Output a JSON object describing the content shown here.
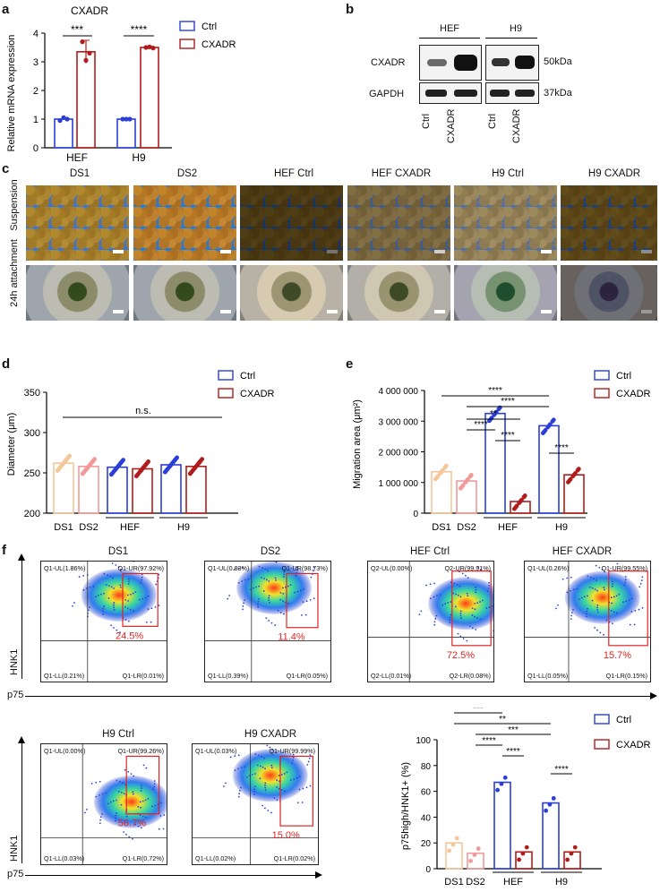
{
  "panel_labels": {
    "a": "a",
    "b": "b",
    "c": "c",
    "d": "d",
    "e": "e",
    "f": "f"
  },
  "panel_a": {
    "chart_data": {
      "type": "bar",
      "title": "CXADR",
      "ylabel": "Relative mRNA expression",
      "categories": [
        "HEF",
        "H9"
      ],
      "ylim": [
        0,
        4
      ],
      "yticks": [
        "0",
        "1",
        "2",
        "3",
        "4"
      ],
      "series": [
        {
          "name": "Ctrl",
          "color": "#2b3fd6",
          "values": [
            1.0,
            1.0
          ],
          "points": [
            [
              0.95,
              1.05,
              1.0
            ],
            [
              1.0,
              1.0,
              1.0
            ]
          ]
        },
        {
          "name": "CXADR",
          "color": "#b01c1c",
          "values": [
            3.35,
            3.5
          ],
          "points": [
            [
              3.7,
              3.05,
              3.3
            ],
            [
              3.5,
              3.52,
              3.48
            ]
          ],
          "err": [
            0.4,
            0.04
          ]
        }
      ],
      "significance": [
        "***",
        "****"
      ]
    }
  },
  "panel_b": {
    "groups": [
      "HEF",
      "H9"
    ],
    "rows": [
      "CXADR",
      "GAPDH"
    ],
    "sizes": [
      "50kDa",
      "37kDa"
    ],
    "lanes": [
      "Ctrl",
      "CXADR",
      "Ctrl",
      "CXADR"
    ]
  },
  "panel_c": {
    "columns": [
      "DS1",
      "DS2",
      "HEF Ctrl",
      "HEF CXADR",
      "H9 Ctrl",
      "H9 CXADR"
    ],
    "rows": [
      "Suspension",
      "24h attachment"
    ]
  },
  "panel_d": {
    "chart_data": {
      "type": "bar",
      "ylabel": "Diameter (μm)",
      "categories": [
        "DS1",
        "DS2",
        "HEF Ctrl",
        "HEF CXADR",
        "H9 Ctrl",
        "H9 CXADR"
      ],
      "group_labels": [
        "DS1",
        "DS2",
        "HEF",
        "H9"
      ],
      "ylim": [
        200,
        350
      ],
      "yticks": [
        "200",
        "250",
        "300",
        "350"
      ],
      "values": [
        262,
        258,
        257,
        255,
        260,
        258
      ],
      "colors": [
        "#f3c79a",
        "#f29a9a",
        "#2b3fd6",
        "#b01c1c",
        "#2b3fd6",
        "#b01c1c"
      ],
      "annotation": "n.s.",
      "legend": [
        "Ctrl",
        "CXADR"
      ]
    }
  },
  "panel_e": {
    "chart_data": {
      "type": "bar",
      "ylabel": "Migration area (μm²)",
      "categories": [
        "DS1",
        "DS2",
        "HEF Ctrl",
        "HEF CXADR",
        "H9 Ctrl",
        "H9 CXADR"
      ],
      "group_labels": [
        "DS1",
        "DS2",
        "HEF",
        "H9"
      ],
      "ylim": [
        0,
        4000000
      ],
      "yticks": [
        "0",
        "1 000 000",
        "2 000 000",
        "3 000 000",
        "4 000 000"
      ],
      "values": [
        1350000,
        1050000,
        3250000,
        380000,
        2850000,
        1250000
      ],
      "colors": [
        "#f3c79a",
        "#f29a9a",
        "#2b3fd6",
        "#b01c1c",
        "#2b3fd6",
        "#b01c1c"
      ],
      "significance": [
        "****",
        "****",
        "**",
        "****",
        "****",
        "****"
      ],
      "legend": [
        "Ctrl",
        "CXADR"
      ]
    }
  },
  "panel_f": {
    "plots": [
      {
        "title": "DS1",
        "ul": "Q1-UL(1.86%)",
        "ur": "Q1-UR(97.92%)",
        "ll": "Q1-LL(0.21%)",
        "lr": "Q1-LR(0.01%)",
        "gate": "24.5%"
      },
      {
        "title": "DS2",
        "ul": "Q1-UL(0.83%)",
        "ur": "Q1-UR(98.73%)",
        "ll": "Q1-LL(0.39%)",
        "lr": "Q1-LR(0.05%)",
        "gate": "11.4%"
      },
      {
        "title": "HEF Ctrl",
        "ul": "Q2-UL(0.00%)",
        "ur": "Q2-UR(99.91%)",
        "ll": "Q2-LL(0.01%)",
        "lr": "Q2-LR(0.08%)",
        "gate": "72.5%"
      },
      {
        "title": "HEF CXADR",
        "ul": "Q1-UL(0.26%)",
        "ur": "Q1-UR(99.55%)",
        "ll": "Q1-LL(0.05%)",
        "lr": "Q1-LR(0.15%)",
        "gate": "15.7%"
      },
      {
        "title": "H9 Ctrl",
        "ul": "Q1-UL(0.00%)",
        "ur": "Q1-UR(99.26%)",
        "ll": "Q1-LL(0.03%)",
        "lr": "Q1-LR(0.72%)",
        "gate": "56.7%"
      },
      {
        "title": "H9 CXADR",
        "ul": "Q1-UL(0.03%)",
        "ur": "Q1-UR(99.99%)",
        "ll": "Q1-LL(0.02%)",
        "lr": "Q1-LR(0.02%)",
        "gate": "15.0%"
      }
    ],
    "axis_y": "HNK1",
    "axis_x": "p75",
    "chart_data": {
      "type": "bar",
      "ylabel": "p75high/HNK1+ (%)",
      "categories": [
        "DS1",
        "DS2",
        "HEF Ctrl",
        "HEF CXADR",
        "H9 Ctrl",
        "H9 CXADR"
      ],
      "group_labels": [
        "DS1",
        "DS2",
        "HEF",
        "H9"
      ],
      "ylim": [
        0,
        100
      ],
      "yticks": [
        "0",
        "20",
        "40",
        "60",
        "80",
        "100"
      ],
      "values": [
        20,
        12,
        67,
        13,
        51,
        13
      ],
      "colors": [
        "#f3c79a",
        "#f29a9a",
        "#2b3fd6",
        "#b01c1c",
        "#2b3fd6",
        "#b01c1c"
      ],
      "significance": [
        "***",
        "***",
        "**",
        "****",
        "****",
        "****",
        "***"
      ],
      "legend": [
        "Ctrl",
        "CXADR"
      ]
    }
  }
}
